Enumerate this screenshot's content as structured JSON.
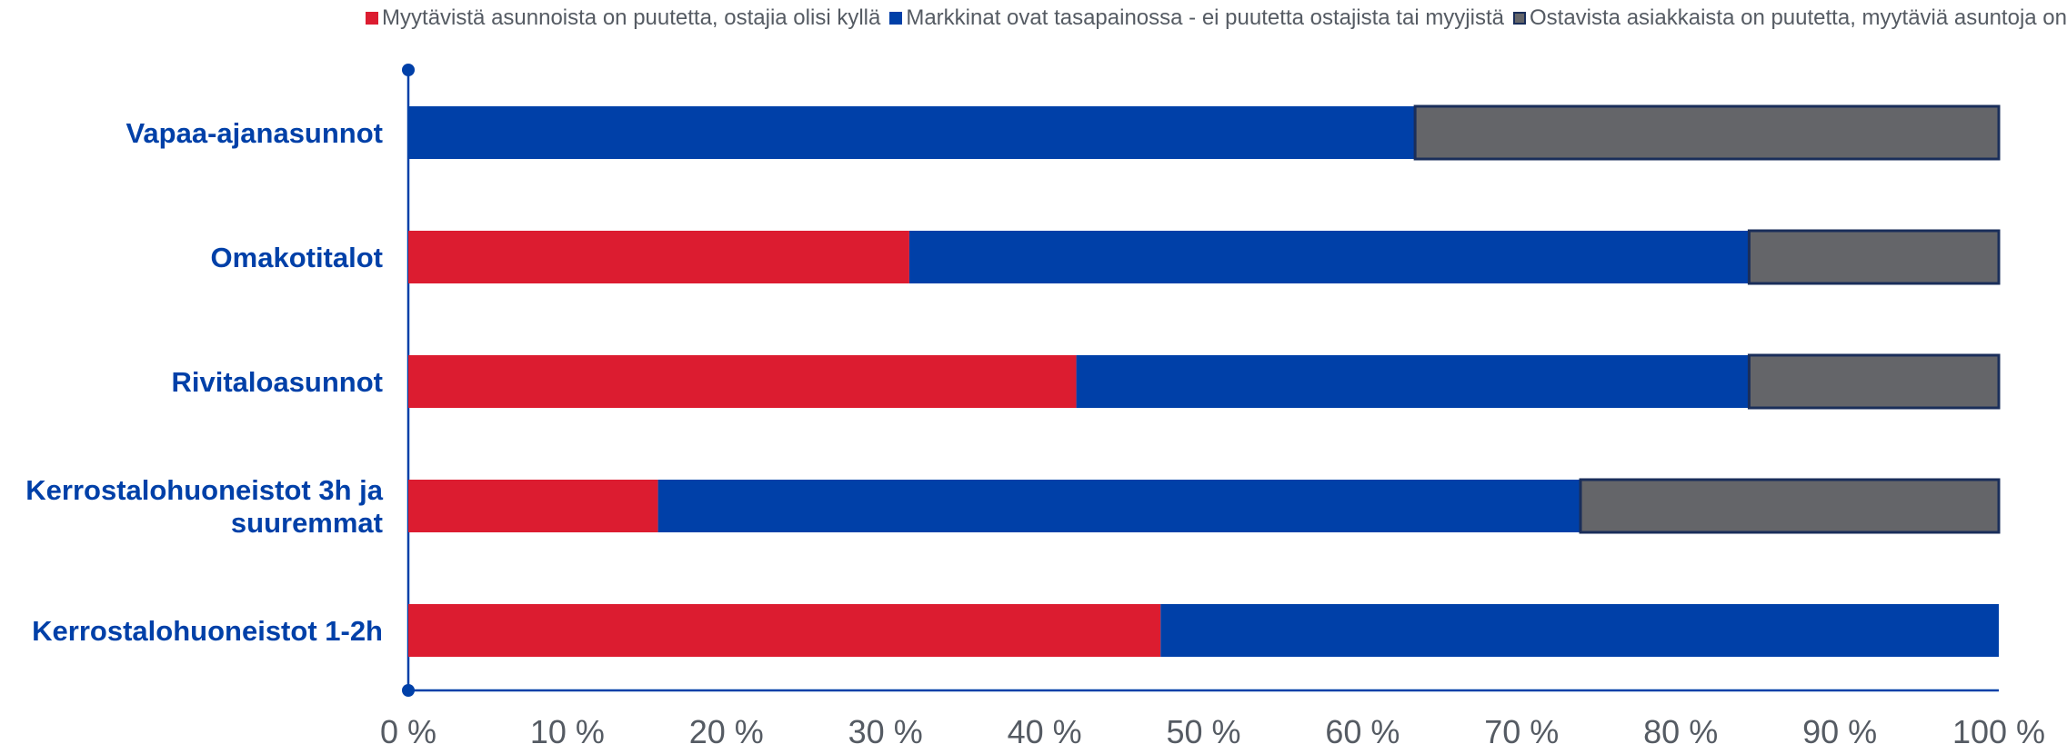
{
  "chart_data": {
    "type": "bar",
    "orientation": "horizontal",
    "stacked": "percent",
    "legend_position": "top-right",
    "grid": false,
    "categories": [
      [
        "Vapaa-ajanasunnot"
      ],
      [
        "Omakotitalot"
      ],
      [
        "Rivitaloasunnot"
      ],
      [
        "Kerrostalohuoneistot 3h ja",
        "suuremmat"
      ],
      [
        "Kerrostalohuoneistot 1-2h"
      ]
    ],
    "series": [
      {
        "name": "Myytävistä asunnoista on puutetta, ostajia olisi kyllä",
        "color": "#dc1c30",
        "values": [
          0,
          31.5,
          42,
          15.7,
          47.3
        ]
      },
      {
        "name": "Markkinat ovat tasapainossa - ei puutetta ostajista tai myyjistä",
        "color": "#0040a8",
        "values": [
          63.3,
          52.8,
          42.3,
          58.0,
          52.7
        ]
      },
      {
        "name": "Ostavista asiakkaista on puutetta, myytäviä asuntoja on",
        "color": "#646569",
        "values": [
          36.7,
          15.7,
          15.7,
          26.3,
          0
        ]
      }
    ],
    "xlim": [
      0,
      100
    ],
    "xticks": [
      "0 %",
      "10 %",
      "20 %",
      "30 %",
      "40 %",
      "50 %",
      "60 %",
      "70 %",
      "80 %",
      "90 %",
      "100 %"
    ],
    "category_label_color": "#0040a8",
    "axis_color": "#0040a8",
    "bar_edge_color": "#1a2e5a",
    "tick_label_color": "#555b63"
  }
}
